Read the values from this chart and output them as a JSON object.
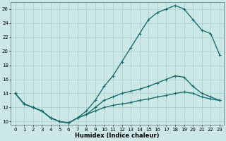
{
  "xlabel": "Humidex (Indice chaleur)",
  "xlim": [
    -0.5,
    23.5
  ],
  "ylim": [
    9.5,
    27
  ],
  "yticks": [
    10,
    12,
    14,
    16,
    18,
    20,
    22,
    24,
    26
  ],
  "xticks": [
    0,
    1,
    2,
    3,
    4,
    5,
    6,
    7,
    8,
    9,
    10,
    11,
    12,
    13,
    14,
    15,
    16,
    17,
    18,
    19,
    20,
    21,
    22,
    23
  ],
  "bg_color": "#cce8e6",
  "grid_color": "#aed4d0",
  "line_color": "#1a7070",
  "line1_x": [
    0,
    1,
    2,
    3,
    4,
    5,
    6,
    7,
    8,
    9,
    10,
    11,
    12,
    13,
    14,
    15,
    16,
    17,
    18,
    19,
    20,
    21,
    22,
    23
  ],
  "line1_y": [
    14,
    12.5,
    12,
    11.5,
    10.5,
    10,
    9.8,
    10.5,
    11.5,
    13,
    15,
    16.5,
    18.5,
    20.5,
    22.5,
    24.5,
    25.5,
    26.0,
    26.5,
    26.0,
    24.5,
    23.0,
    22.5,
    19.5
  ],
  "line2_x": [
    0,
    1,
    2,
    3,
    4,
    5,
    6,
    7,
    8,
    9,
    10,
    11,
    12,
    13,
    14,
    15,
    16,
    17,
    18,
    19,
    20,
    21,
    22,
    23
  ],
  "line2_y": [
    14,
    12.5,
    12,
    11.5,
    10.5,
    10,
    9.8,
    10.5,
    11.0,
    12.0,
    13.0,
    13.5,
    14.0,
    14.3,
    14.6,
    15.0,
    15.5,
    16.0,
    16.5,
    16.3,
    15.0,
    14.0,
    13.5,
    13.0
  ],
  "line3_x": [
    0,
    1,
    2,
    3,
    4,
    5,
    6,
    7,
    8,
    9,
    10,
    11,
    12,
    13,
    14,
    15,
    16,
    17,
    18,
    19,
    20,
    21,
    22,
    23
  ],
  "line3_y": [
    14,
    12.5,
    12,
    11.5,
    10.5,
    10,
    9.8,
    10.5,
    11.0,
    11.5,
    12.0,
    12.3,
    12.5,
    12.7,
    13.0,
    13.2,
    13.5,
    13.7,
    14.0,
    14.2,
    14.0,
    13.5,
    13.2,
    13.0
  ]
}
